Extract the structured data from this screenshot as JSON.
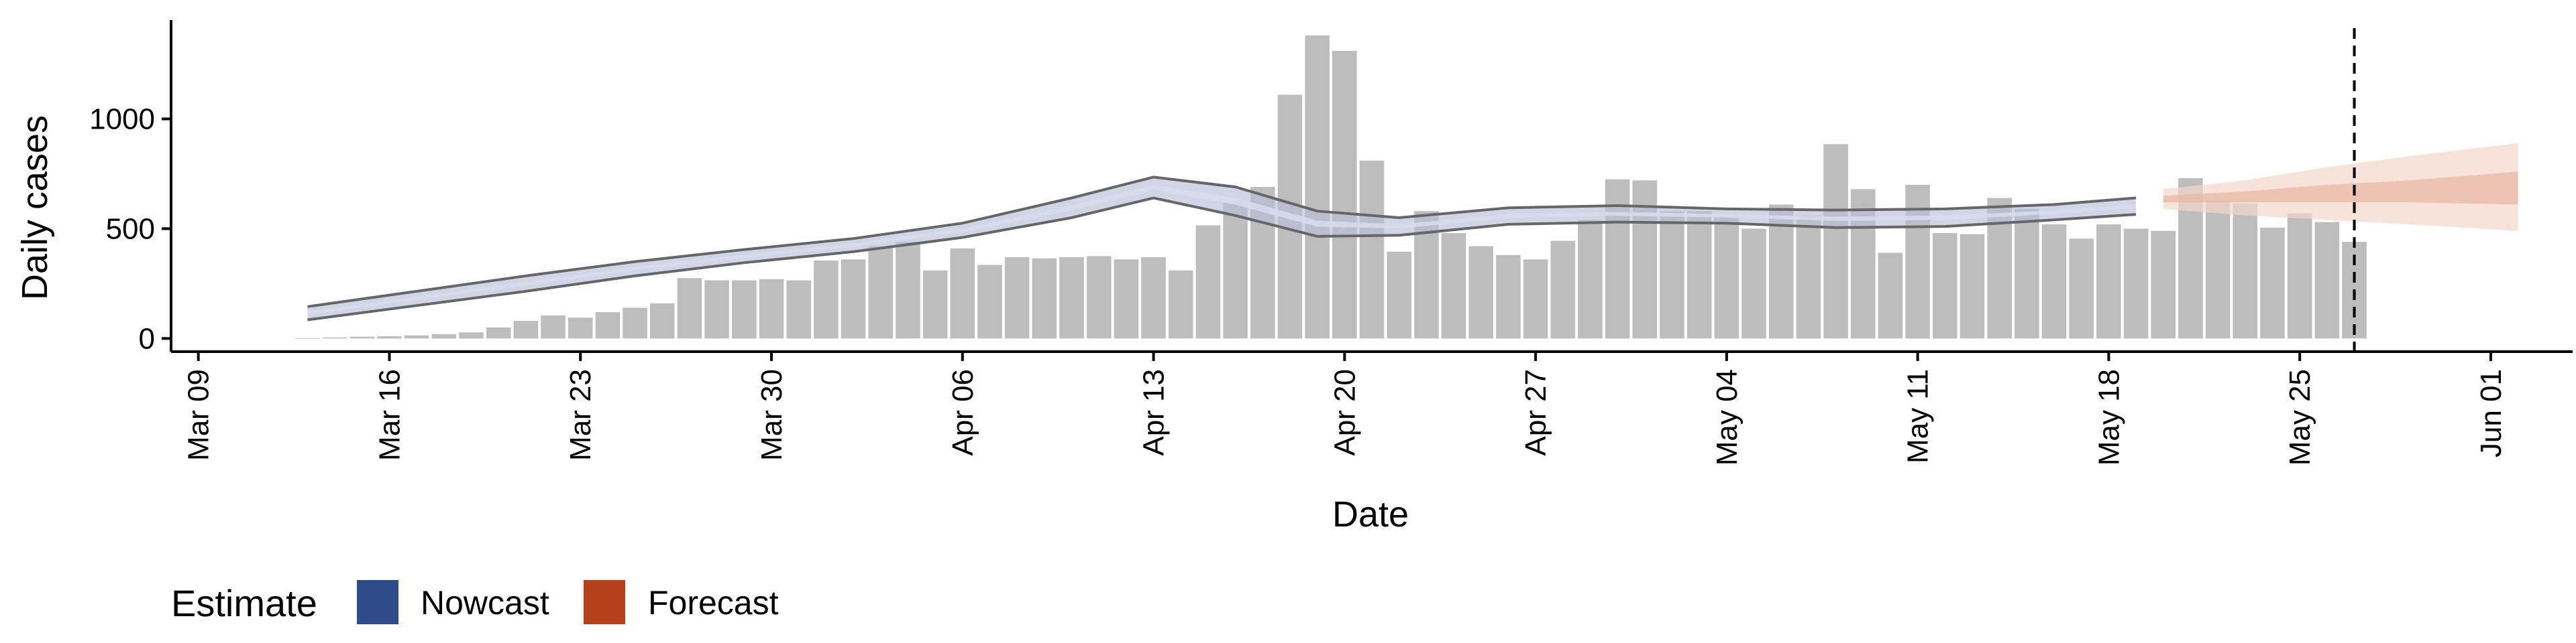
{
  "chart_data": {
    "type": "bar",
    "xlabel": "Date",
    "ylabel": "Daily cases",
    "yticks": [
      0,
      500,
      1000
    ],
    "ylim": [
      -60,
      1450
    ],
    "xlim": [
      "2020-03-08",
      "2020-06-04"
    ],
    "xtick_dates": [
      "2020-03-09",
      "2020-03-16",
      "2020-03-23",
      "2020-03-30",
      "2020-04-06",
      "2020-04-13",
      "2020-04-20",
      "2020-04-27",
      "2020-05-04",
      "2020-05-11",
      "2020-05-18",
      "2020-05-25",
      "2020-06-01"
    ],
    "xtick_labels": [
      "Mar 09",
      "Mar 16",
      "Mar 23",
      "Mar 30",
      "Apr 06",
      "Apr 13",
      "Apr 20",
      "Apr 27",
      "May 04",
      "May 11",
      "May 18",
      "May 25",
      "Jun 01"
    ],
    "bars": {
      "start_date": "2020-03-13",
      "color": "#bdbdbd",
      "values": [
        2,
        5,
        8,
        10,
        14,
        20,
        28,
        50,
        80,
        105,
        95,
        120,
        140,
        160,
        275,
        265,
        265,
        270,
        265,
        355,
        360,
        420,
        440,
        310,
        410,
        335,
        370,
        365,
        370,
        375,
        360,
        370,
        310,
        515,
        625,
        690,
        1110,
        1380,
        1310,
        810,
        395,
        580,
        480,
        420,
        380,
        360,
        445,
        540,
        725,
        720,
        580,
        580,
        560,
        500,
        610,
        560,
        885,
        680,
        390,
        700,
        480,
        475,
        640,
        590,
        520,
        455,
        520,
        500,
        490,
        730,
        630,
        615,
        505,
        570,
        530,
        440
      ]
    },
    "nowcast": {
      "name": "Nowcast",
      "color": "#2e4c8a",
      "x": [
        "2020-03-13",
        "2020-03-17",
        "2020-03-21",
        "2020-03-25",
        "2020-03-29",
        "2020-04-02",
        "2020-04-06",
        "2020-04-10",
        "2020-04-13",
        "2020-04-16",
        "2020-04-19",
        "2020-04-22",
        "2020-04-26",
        "2020-04-30",
        "2020-05-04",
        "2020-05-08",
        "2020-05-12",
        "2020-05-16",
        "2020-05-19"
      ],
      "upper": [
        145,
        215,
        285,
        350,
        405,
        455,
        525,
        640,
        735,
        690,
        580,
        550,
        595,
        605,
        590,
        585,
        590,
        610,
        640
      ],
      "lower": [
        85,
        150,
        215,
        285,
        345,
        395,
        460,
        550,
        640,
        560,
        465,
        470,
        520,
        530,
        525,
        505,
        510,
        540,
        565
      ],
      "median": [
        115,
        183,
        250,
        318,
        375,
        425,
        493,
        595,
        688,
        625,
        523,
        510,
        558,
        568,
        558,
        545,
        550,
        575,
        603
      ]
    },
    "forecast": {
      "name": "Forecast",
      "color": "#b5401a",
      "x": [
        "2020-05-20",
        "2020-05-23",
        "2020-05-26",
        "2020-05-29",
        "2020-06-02"
      ],
      "outer_upper": [
        680,
        720,
        780,
        830,
        890
      ],
      "outer_lower": [
        590,
        560,
        540,
        520,
        490
      ],
      "inner_upper": [
        650,
        670,
        700,
        720,
        760
      ],
      "inner_lower": [
        620,
        620,
        620,
        620,
        610
      ]
    },
    "vline_date": "2020-05-27",
    "legend": {
      "title": "Estimate",
      "position": "bottom-left",
      "items": [
        {
          "label": "Nowcast",
          "color": "#2e4c8a"
        },
        {
          "label": "Forecast",
          "color": "#b5401a"
        }
      ]
    }
  }
}
